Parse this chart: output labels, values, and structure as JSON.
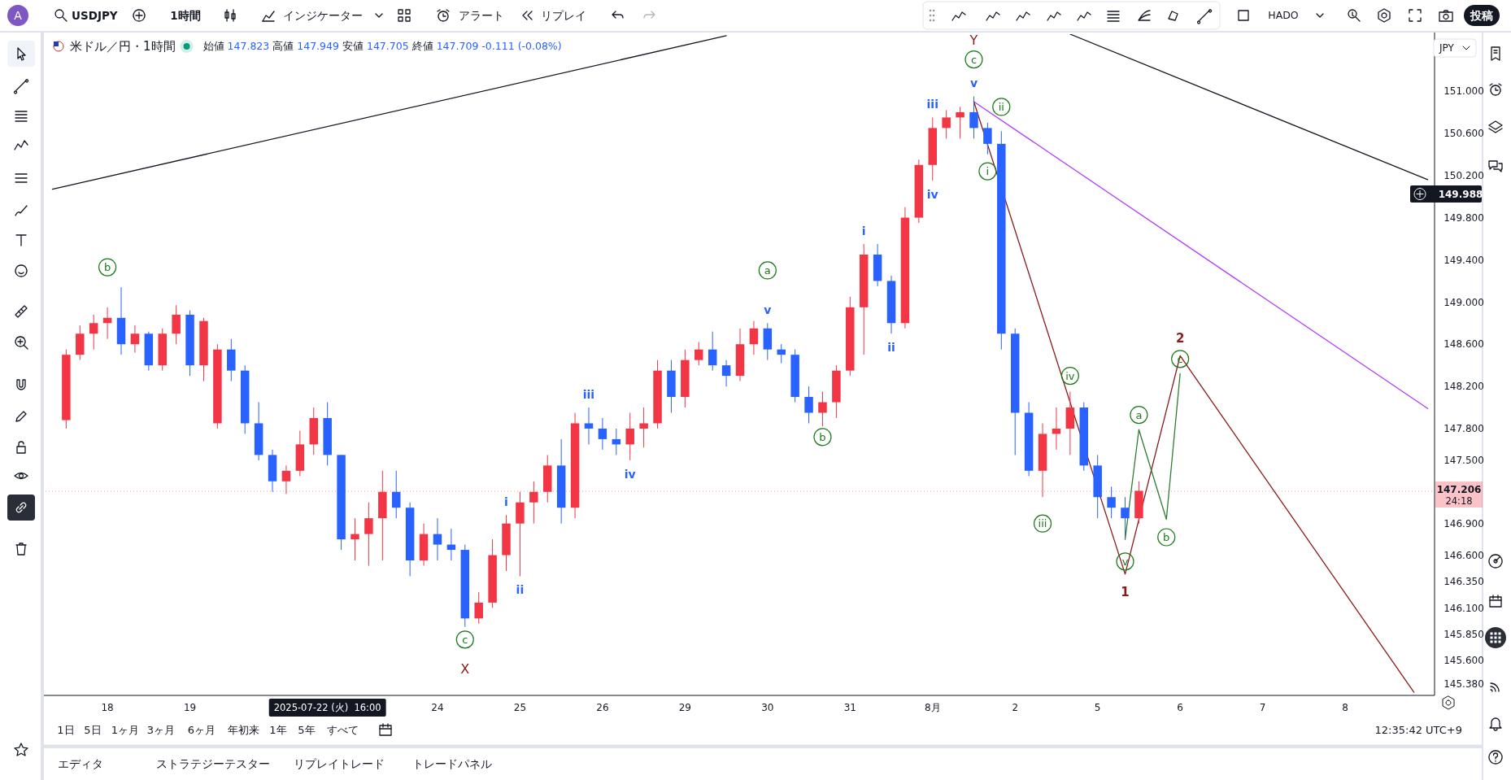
{
  "chart_data": {
    "type": "candlestick",
    "title": "米ドル／円・1時間",
    "categories": [
      null,
      null,
      null,
      null,
      "18",
      null,
      null,
      null,
      null,
      null,
      "19",
      null,
      null,
      null,
      null,
      null,
      null,
      null,
      null,
      null,
      "2025-07-22 (火)  16:00",
      null,
      null,
      null,
      null,
      null,
      null,
      null,
      "24",
      null,
      null,
      null,
      null,
      null,
      "25",
      null,
      null,
      null,
      null,
      null,
      "26",
      null,
      null,
      null,
      null,
      null,
      "29",
      null,
      null,
      null,
      null,
      null,
      "30",
      null,
      null,
      null,
      null,
      null,
      "31",
      null,
      null,
      null,
      null,
      null,
      "8月",
      null,
      null,
      null,
      null,
      null,
      "2",
      null,
      null,
      null,
      null,
      null,
      "5",
      null,
      null,
      null,
      null,
      null,
      "6",
      null,
      null,
      null,
      null,
      null,
      "7",
      null,
      null,
      null,
      null,
      null,
      "8",
      null,
      null,
      null,
      null,
      null,
      null
    ],
    "ohlc": [
      null,
      [
        147.88,
        148.55,
        147.8,
        148.5
      ],
      [
        148.5,
        148.78,
        148.45,
        148.7
      ],
      [
        148.7,
        148.88,
        148.55,
        148.8
      ],
      [
        148.8,
        148.95,
        148.65,
        148.85
      ],
      [
        148.85,
        149.14,
        148.5,
        148.6
      ],
      [
        148.6,
        148.78,
        148.52,
        148.7
      ],
      [
        148.7,
        148.72,
        148.35,
        148.4
      ],
      [
        148.4,
        148.75,
        148.35,
        148.7
      ],
      [
        148.7,
        148.97,
        148.6,
        148.88
      ],
      [
        148.88,
        148.92,
        148.3,
        148.4
      ],
      [
        148.4,
        148.85,
        148.25,
        148.82
      ],
      [
        147.85,
        148.6,
        147.8,
        148.55
      ],
      [
        148.55,
        148.65,
        148.25,
        148.35
      ],
      [
        148.35,
        148.4,
        147.75,
        147.85
      ],
      [
        147.85,
        148.05,
        147.5,
        147.55
      ],
      [
        147.55,
        147.6,
        147.2,
        147.3
      ],
      [
        147.3,
        147.45,
        147.18,
        147.4
      ],
      [
        147.4,
        147.78,
        147.35,
        147.65
      ],
      [
        147.65,
        148,
        147.55,
        147.9
      ],
      [
        147.9,
        148.05,
        147.45,
        147.55
      ],
      [
        147.55,
        147.55,
        146.65,
        146.75
      ],
      [
        146.75,
        146.95,
        146.55,
        146.8
      ],
      [
        146.8,
        147.1,
        146.5,
        146.95
      ],
      [
        146.95,
        147.4,
        146.55,
        147.2
      ],
      [
        147.2,
        147.4,
        146.95,
        147.05
      ],
      [
        147.05,
        147.1,
        146.4,
        146.55
      ],
      [
        146.55,
        146.9,
        146.5,
        146.8
      ],
      [
        146.8,
        146.95,
        146.55,
        146.7
      ],
      [
        146.7,
        146.85,
        146.55,
        146.65
      ],
      [
        146.65,
        146.7,
        145.92,
        146
      ],
      [
        146,
        146.25,
        145.95,
        146.15
      ],
      [
        146.15,
        146.75,
        146.1,
        146.6
      ],
      [
        146.6,
        146.98,
        146.45,
        146.9
      ],
      [
        146.9,
        147.2,
        146.4,
        147.1
      ],
      [
        147.1,
        147.3,
        146.9,
        147.2
      ],
      [
        147.2,
        147.55,
        147.1,
        147.45
      ],
      [
        147.45,
        147.7,
        146.9,
        147.05
      ],
      [
        147.05,
        147.95,
        146.95,
        147.85
      ],
      [
        147.85,
        148,
        147.65,
        147.8
      ],
      [
        147.8,
        147.9,
        147.6,
        147.7
      ],
      [
        147.7,
        147.8,
        147.55,
        147.65
      ],
      [
        147.65,
        147.95,
        147.5,
        147.8
      ],
      [
        147.8,
        148,
        147.62,
        147.85
      ],
      [
        147.85,
        148.45,
        147.8,
        148.35
      ],
      [
        148.35,
        148.45,
        147.95,
        148.1
      ],
      [
        148.1,
        148.55,
        148,
        148.45
      ],
      [
        148.45,
        148.62,
        148.4,
        148.55
      ],
      [
        148.55,
        148.72,
        148.35,
        148.4
      ],
      [
        148.4,
        148.45,
        148.2,
        148.3
      ],
      [
        148.3,
        148.75,
        148.25,
        148.6
      ],
      [
        148.6,
        148.82,
        148.5,
        148.75
      ],
      [
        148.75,
        148.8,
        148.45,
        148.55
      ],
      [
        148.55,
        148.6,
        148.42,
        148.5
      ],
      [
        148.5,
        148.55,
        148.05,
        148.1
      ],
      [
        148.1,
        148.2,
        147.85,
        147.95
      ],
      [
        147.95,
        148.15,
        147.82,
        148.05
      ],
      [
        148.05,
        148.4,
        147.9,
        148.35
      ],
      [
        148.35,
        149.05,
        148.3,
        148.95
      ],
      [
        148.95,
        149.55,
        148.5,
        149.45
      ],
      [
        149.45,
        149.55,
        149.15,
        149.2
      ],
      [
        149.2,
        149.25,
        148.7,
        148.8
      ],
      [
        148.8,
        149.9,
        148.75,
        149.8
      ],
      [
        149.8,
        150.35,
        149.75,
        150.3
      ],
      [
        150.3,
        150.75,
        150.15,
        150.65
      ],
      [
        150.65,
        150.82,
        150.55,
        150.75
      ],
      [
        150.75,
        150.85,
        150.55,
        150.8
      ],
      [
        150.8,
        150.95,
        150.55,
        150.65
      ],
      [
        150.65,
        150.7,
        150.4,
        150.5
      ],
      [
        150.5,
        150.62,
        148.55,
        148.7
      ],
      [
        148.7,
        148.75,
        147.55,
        147.95
      ],
      [
        147.95,
        148.05,
        147.35,
        147.4
      ],
      [
        147.4,
        147.85,
        147.15,
        147.75
      ],
      [
        147.75,
        148,
        147.6,
        147.8
      ],
      [
        147.8,
        148.15,
        147.55,
        148
      ],
      [
        148,
        148.05,
        147.4,
        147.45
      ],
      [
        147.45,
        147.55,
        146.95,
        147.15
      ],
      [
        147.15,
        147.25,
        146.95,
        147.05
      ],
      [
        147.05,
        147.15,
        146.75,
        146.95
      ],
      [
        146.95,
        147.3,
        146.9,
        147.21
      ],
      null,
      null,
      null,
      null,
      null,
      null,
      null,
      null,
      null,
      null,
      null,
      null,
      null,
      null,
      null,
      null,
      null,
      null,
      null,
      null,
      null
    ],
    "colors": [
      null,
      "#f23645",
      "#f23645",
      "#f23645",
      "#f23645",
      "#2962ff",
      "#f23645",
      "#2962ff",
      "#f23645",
      "#f23645",
      "#2962ff",
      "#f23645",
      "#f23645",
      "#2962ff",
      "#2962ff",
      "#2962ff",
      "#2962ff",
      "#f23645",
      "#f23645",
      "#f23645",
      "#2962ff",
      "#2962ff",
      "#f23645",
      "#f23645",
      "#f23645",
      "#2962ff",
      "#2962ff",
      "#f23645",
      "#2962ff",
      "#2962ff",
      "#2962ff",
      "#f23645",
      "#f23645",
      "#f23645",
      "#f23645",
      "#f23645",
      "#f23645",
      "#2962ff",
      "#f23645",
      "#2962ff",
      "#2962ff",
      "#2962ff",
      "#f23645",
      "#f23645",
      "#f23645",
      "#2962ff",
      "#f23645",
      "#f23645",
      "#2962ff",
      "#2962ff",
      "#f23645",
      "#f23645",
      "#2962ff",
      "#2962ff",
      "#2962ff",
      "#2962ff",
      "#f23645",
      "#f23645",
      "#f23645",
      "#f23645",
      "#2962ff",
      "#2962ff",
      "#f23645",
      "#f23645",
      "#f23645",
      "#f23645",
      "#f23645",
      "#2962ff",
      "#2962ff",
      "#2962ff",
      "#2962ff",
      "#2962ff",
      "#f23645",
      "#f23645",
      "#f23645",
      "#2962ff",
      "#2962ff",
      "#2962ff",
      "#2962ff",
      "#f23645",
      null,
      null,
      null,
      null,
      null,
      null,
      null,
      null,
      null,
      null,
      null,
      null,
      null,
      null,
      null,
      null,
      null,
      null,
      null,
      null,
      null
    ],
    "series": [
      {
        "type": "line",
        "color": "#131722",
        "values": [
          150.07,
          null,
          null,
          null,
          null,
          null,
          null,
          null,
          null,
          null,
          null,
          null,
          null,
          null,
          null,
          null,
          null,
          null,
          null,
          null,
          null,
          null,
          null,
          null,
          null,
          null,
          null,
          null,
          null,
          null,
          null,
          null,
          null,
          null,
          null,
          null,
          null,
          null,
          null,
          null,
          null,
          null,
          null,
          null,
          null,
          null,
          null,
          null,
          null,
          151.525,
          null,
          null,
          null,
          null,
          null,
          null,
          null,
          null,
          null,
          null,
          null,
          null,
          null,
          null,
          null,
          null,
          null,
          null,
          null,
          null,
          null,
          null,
          null,
          null,
          null,
          null,
          null,
          null,
          null,
          null,
          null,
          null,
          null,
          null,
          null,
          null,
          null,
          null,
          null,
          null,
          null,
          null,
          null,
          null,
          null,
          null,
          null,
          null,
          null,
          null,
          null
        ]
      },
      {
        "type": "line",
        "color": "#131722",
        "values": [
          null,
          null,
          null,
          null,
          null,
          null,
          null,
          null,
          null,
          null,
          null,
          null,
          null,
          null,
          null,
          null,
          null,
          null,
          null,
          null,
          null,
          null,
          null,
          null,
          null,
          null,
          null,
          null,
          null,
          null,
          null,
          null,
          null,
          null,
          null,
          null,
          null,
          null,
          null,
          null,
          null,
          null,
          null,
          null,
          null,
          null,
          null,
          null,
          null,
          null,
          null,
          null,
          null,
          null,
          null,
          null,
          null,
          null,
          null,
          null,
          null,
          null,
          null,
          null,
          null,
          null,
          null,
          null,
          null,
          null,
          null,
          null,
          null,
          null,
          151.54,
          null,
          null,
          null,
          null,
          null,
          null,
          null,
          null,
          null,
          null,
          null,
          null,
          null,
          null,
          null,
          null,
          null,
          null,
          null,
          null,
          null,
          null,
          null,
          null,
          null,
          150.16
        ]
      },
      {
        "type": "line",
        "color": "#b23cfd",
        "values": [
          null,
          null,
          null,
          null,
          null,
          null,
          null,
          null,
          null,
          null,
          null,
          null,
          null,
          null,
          null,
          null,
          null,
          null,
          null,
          null,
          null,
          null,
          null,
          null,
          null,
          null,
          null,
          null,
          null,
          null,
          null,
          null,
          null,
          null,
          null,
          null,
          null,
          null,
          null,
          null,
          null,
          null,
          null,
          null,
          null,
          null,
          null,
          null,
          null,
          null,
          null,
          null,
          null,
          null,
          null,
          null,
          null,
          null,
          null,
          null,
          null,
          null,
          null,
          null,
          null,
          null,
          null,
          150.9,
          null,
          null,
          null,
          null,
          null,
          null,
          null,
          null,
          null,
          null,
          null,
          null,
          null,
          null,
          null,
          null,
          null,
          null,
          null,
          null,
          null,
          null,
          null,
          null,
          null,
          null,
          null,
          null,
          null,
          null,
          null,
          null,
          147.99
        ]
      },
      {
        "type": "line",
        "color": "#8b1a1a",
        "values": [
          null,
          null,
          null,
          null,
          null,
          null,
          null,
          null,
          null,
          null,
          null,
          null,
          null,
          null,
          null,
          null,
          null,
          null,
          null,
          null,
          null,
          null,
          null,
          null,
          null,
          null,
          null,
          null,
          null,
          null,
          null,
          null,
          null,
          null,
          null,
          null,
          null,
          null,
          null,
          null,
          null,
          null,
          null,
          null,
          null,
          null,
          null,
          null,
          null,
          null,
          null,
          null,
          null,
          null,
          null,
          null,
          null,
          null,
          null,
          null,
          null,
          null,
          null,
          null,
          null,
          null,
          null,
          150.9,
          null,
          null,
          null,
          null,
          null,
          null,
          null,
          null,
          null,
          null,
          146.42,
          null,
          null,
          null,
          148.49,
          null,
          null,
          null,
          null,
          null,
          null,
          null,
          null,
          null,
          null,
          null,
          null,
          null,
          null,
          null,
          null,
          145.3,
          null
        ]
      },
      {
        "type": "line",
        "color": "#2e7d32",
        "values": [
          null,
          null,
          null,
          null,
          null,
          null,
          null,
          null,
          null,
          null,
          null,
          null,
          null,
          null,
          null,
          null,
          null,
          null,
          null,
          null,
          null,
          null,
          null,
          null,
          null,
          null,
          null,
          null,
          null,
          null,
          null,
          null,
          null,
          null,
          null,
          null,
          null,
          null,
          null,
          null,
          null,
          null,
          null,
          null,
          null,
          null,
          null,
          null,
          null,
          null,
          null,
          null,
          null,
          null,
          null,
          null,
          null,
          null,
          null,
          null,
          null,
          null,
          null,
          null,
          null,
          null,
          null,
          null,
          null,
          null,
          null,
          null,
          null,
          null,
          null,
          null,
          null,
          null,
          146.75,
          147.79,
          null,
          146.94,
          148.32,
          null,
          null,
          null,
          null,
          null,
          null,
          null,
          null,
          null,
          null,
          null,
          null,
          null,
          null,
          null,
          null,
          null,
          null
        ]
      },
      {
        "type": "scatter",
        "marker": "circle",
        "color": "#1b7a1b",
        "values": [
          null,
          null,
          null,
          null,
          149.33,
          null,
          null,
          null,
          null,
          null,
          null,
          null,
          null,
          null,
          null,
          null,
          null,
          null,
          null,
          null,
          null,
          null,
          null,
          null,
          null,
          null,
          null,
          null,
          null,
          null,
          145.8,
          null,
          null,
          null,
          null,
          null,
          null,
          null,
          null,
          null,
          null,
          null,
          null,
          null,
          null,
          null,
          null,
          null,
          null,
          null,
          null,
          null,
          149.3,
          null,
          null,
          null,
          147.72,
          null,
          null,
          null,
          null,
          null,
          null,
          null,
          null,
          null,
          null,
          151.3,
          150.24,
          150.85,
          null,
          null,
          146.9,
          null,
          148.3,
          null,
          null,
          null,
          146.54,
          147.93,
          null,
          146.77,
          148.46,
          null,
          null,
          null,
          null,
          null,
          null,
          null,
          null,
          null,
          null,
          null,
          null,
          null,
          null,
          null,
          null,
          null,
          null
        ],
        "value_labels": [
          null,
          null,
          null,
          null,
          "b",
          null,
          null,
          null,
          null,
          null,
          null,
          null,
          null,
          null,
          null,
          null,
          null,
          null,
          null,
          null,
          null,
          null,
          null,
          null,
          null,
          null,
          null,
          null,
          null,
          null,
          "c",
          null,
          null,
          null,
          null,
          null,
          null,
          null,
          null,
          null,
          null,
          null,
          null,
          null,
          null,
          null,
          null,
          null,
          null,
          null,
          null,
          null,
          "a",
          null,
          null,
          null,
          "b",
          null,
          null,
          null,
          null,
          null,
          null,
          null,
          null,
          null,
          null,
          "c",
          "i",
          "ii",
          null,
          null,
          "iii",
          null,
          "iv",
          null,
          null,
          null,
          "v",
          "a",
          null,
          "b",
          "c",
          null,
          null,
          null,
          null,
          null,
          null,
          null,
          null,
          null,
          null,
          null,
          null,
          null,
          null,
          null,
          null,
          null,
          null
        ]
      }
    ],
    "ylim": [
      145.27,
      151.54
    ],
    "yticks": [
      {
        "value": 151,
        "label": "151.000"
      },
      {
        "value": 150.6,
        "label": "150.600"
      },
      {
        "value": 150.2,
        "label": "150.200"
      },
      {
        "value": 149.8,
        "label": "149.800"
      },
      {
        "value": 149.4,
        "label": "149.400"
      },
      {
        "value": 149,
        "label": "149.000"
      },
      {
        "value": 148.6,
        "label": "148.600"
      },
      {
        "value": 148.2,
        "label": "148.200"
      },
      {
        "value": 147.8,
        "label": "147.800"
      },
      {
        "value": 147.5,
        "label": "147.500"
      },
      {
        "value": 146.9,
        "label": "146.900"
      },
      {
        "value": 146.6,
        "label": "146.600"
      },
      {
        "value": 146.35,
        "label": "146.350"
      },
      {
        "value": 146.1,
        "label": "146.100"
      },
      {
        "value": 145.85,
        "label": "145.850"
      },
      {
        "value": 145.6,
        "label": "145.600"
      },
      {
        "value": 145.38,
        "label": "145.380"
      }
    ],
    "ref_lines": [
      {
        "axis": "y",
        "value": 147.206,
        "label": "147.206",
        "color": "#f23645",
        "line_style": "dotted"
      }
    ],
    "grid": false,
    "annotations": [
      "A",
      "USDJPY",
      "1時間",
      "インジケーター",
      "アラート",
      "リプレイ",
      "HADO",
      "投稿",
      "始値",
      "147.823",
      "高値",
      "147.949",
      "安値",
      "147.705",
      "終値",
      "147.709",
      "-0.111 (-0.08%)",
      "JPY",
      "149.988",
      "24:18",
      "1日",
      "5日",
      "1ヶ月",
      "3ヶ月",
      "6ヶ月",
      "年初来",
      "1年",
      "5年",
      "すべて",
      "12:35:42 UTC+9",
      "エディタ",
      "ストラテジーテスター",
      "リプレイトレード",
      "トレードパネル",
      "1",
      "2",
      "i",
      "ii",
      "iii",
      "iv",
      "v",
      "i",
      "ii",
      "iii",
      "iv",
      "v",
      "X",
      "Y"
    ]
  }
}
